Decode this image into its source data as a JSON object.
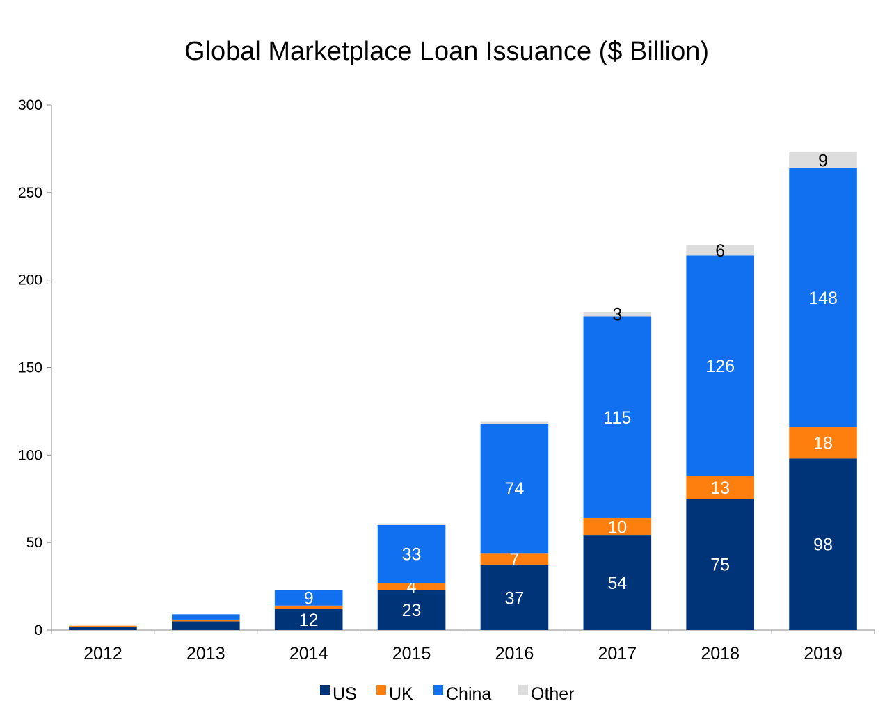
{
  "chart_data": {
    "type": "bar",
    "stacked": true,
    "title": "Global Marketplace Loan Issuance ($ Billion)",
    "xlabel": "",
    "ylabel": "",
    "ylim": [
      0,
      300
    ],
    "yticks": [
      0,
      50,
      100,
      150,
      200,
      250,
      300
    ],
    "categories": [
      "2012",
      "2013",
      "2014",
      "2015",
      "2016",
      "2017",
      "2018",
      "2019"
    ],
    "series": [
      {
        "name": "US",
        "color": "#003478",
        "values": [
          2,
          5,
          12,
          23,
          37,
          54,
          75,
          98
        ],
        "labels": [
          "",
          "",
          "12",
          "23",
          "37",
          "54",
          "75",
          "98"
        ],
        "label_color": "#ffffff"
      },
      {
        "name": "UK",
        "color": "#ff7f0e",
        "values": [
          0.5,
          1,
          2,
          4,
          7,
          10,
          13,
          18
        ],
        "labels": [
          "",
          "",
          "",
          "4",
          "7",
          "10",
          "13",
          "18"
        ],
        "label_color": "#ffffff"
      },
      {
        "name": "China",
        "color": "#1170f0",
        "values": [
          0,
          3,
          9,
          33,
          74,
          115,
          126,
          148
        ],
        "labels": [
          "",
          "",
          "9",
          "33",
          "74",
          "115",
          "126",
          "148"
        ],
        "label_color": "#ffffff"
      },
      {
        "name": "Other",
        "color": "#dddddd",
        "values": [
          0,
          0,
          0,
          1,
          1,
          3,
          6,
          9
        ],
        "labels": [
          "",
          "",
          "",
          "",
          "",
          "3",
          "6",
          "9"
        ],
        "label_color": "#000000"
      }
    ],
    "grid": false,
    "legend_position": "bottom"
  }
}
